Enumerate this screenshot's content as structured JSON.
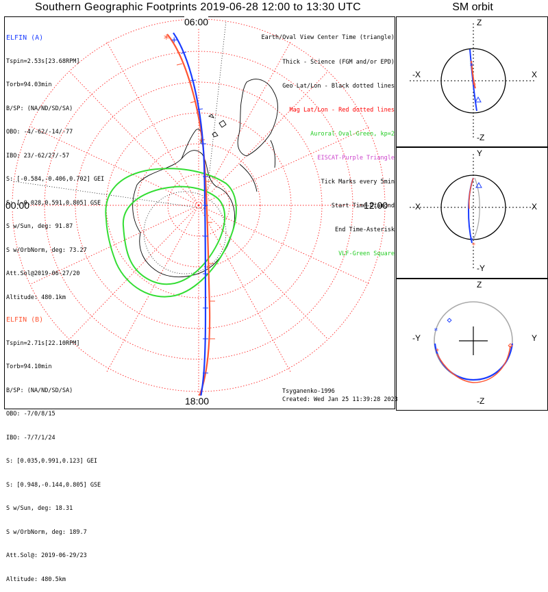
{
  "title": "Southern Geographic Footprints 2019-06-28 12:00 to 13:30 UTC",
  "sm_title": "SM orbit",
  "hours": {
    "top": "06:00",
    "left": "00:00",
    "right": "12:00",
    "bottom": "18:00"
  },
  "elfin_a": {
    "name": "ELFIN (A)",
    "color": "#1a3cff",
    "lines": [
      "Tspin=2.53s[23.68RPM]",
      "Torb=94.03min",
      "B/SP: (NA/ND/SD/SA)",
      "OBO: -4/-62/-14/-77",
      "IBO: 23/-62/27/-57",
      "S: [-0.584,-0.406,0.702] GEI",
      "S: [-0.028,0.591,0.805] GSE",
      "S w/Sun, deg: 91.87",
      "S w/OrbNorm, deg: 73.27",
      "Att.Sol@2019-06-27/20",
      "Altitude: 480.1km"
    ]
  },
  "elfin_b": {
    "name": "ELFIN (B)",
    "color": "#ff5533",
    "lines": [
      "Tspin=2.71s[22.10RPM]",
      "Torb=94.10min",
      "B/SP: (NA/ND/SD/SA)",
      "OBO: -7/0/8/15",
      "IBO: -7/7/1/24",
      "S: [0.035,0.991,0.123] GEI",
      "S: [0.948,-0.144,0.805] GSE",
      "S w/Sun, deg: 18.31",
      "S w/OrbNorm, deg: 189.7",
      "Att.Sol@: 2019-06-29/23",
      "Altitude: 480.5km"
    ]
  },
  "legend": [
    {
      "text": "Earth/Oval View Center Time (triangle)",
      "color": "#000000"
    },
    {
      "text": "Thick - Science (FGM and/or EPD)",
      "color": "#000000"
    },
    {
      "text": "Geo Lat/Lon - Black dotted lines",
      "color": "#000000"
    },
    {
      "text": "Mag Lat/Lon - Red dotted lines",
      "color": "#ff0000"
    },
    {
      "text": "Auroral Oval-Green, kp=2",
      "color": "#22cc22"
    },
    {
      "text": "EISCAT-Purple Triangle",
      "color": "#cc44cc"
    },
    {
      "text": "Tick Marks every 5min",
      "color": "#000000"
    },
    {
      "text": "Start Time-Diamond",
      "color": "#000000"
    },
    {
      "text": "End Time-Asterisk",
      "color": "#000000"
    },
    {
      "text": "VLF-Green Square",
      "color": "#22cc22"
    }
  ],
  "model": "Tsyganenko-1996",
  "created": "Created: Wed Jan 25 11:39:28 2023",
  "sm_panels": [
    {
      "top": "Z",
      "bottom": "-Z",
      "left": "-X",
      "right": "X"
    },
    {
      "top": "Y",
      "bottom": "-Y",
      "left": "-X",
      "right": "X"
    },
    {
      "top": "Z",
      "bottom": "-Z",
      "left": "-Y",
      "right": "Y"
    }
  ]
}
